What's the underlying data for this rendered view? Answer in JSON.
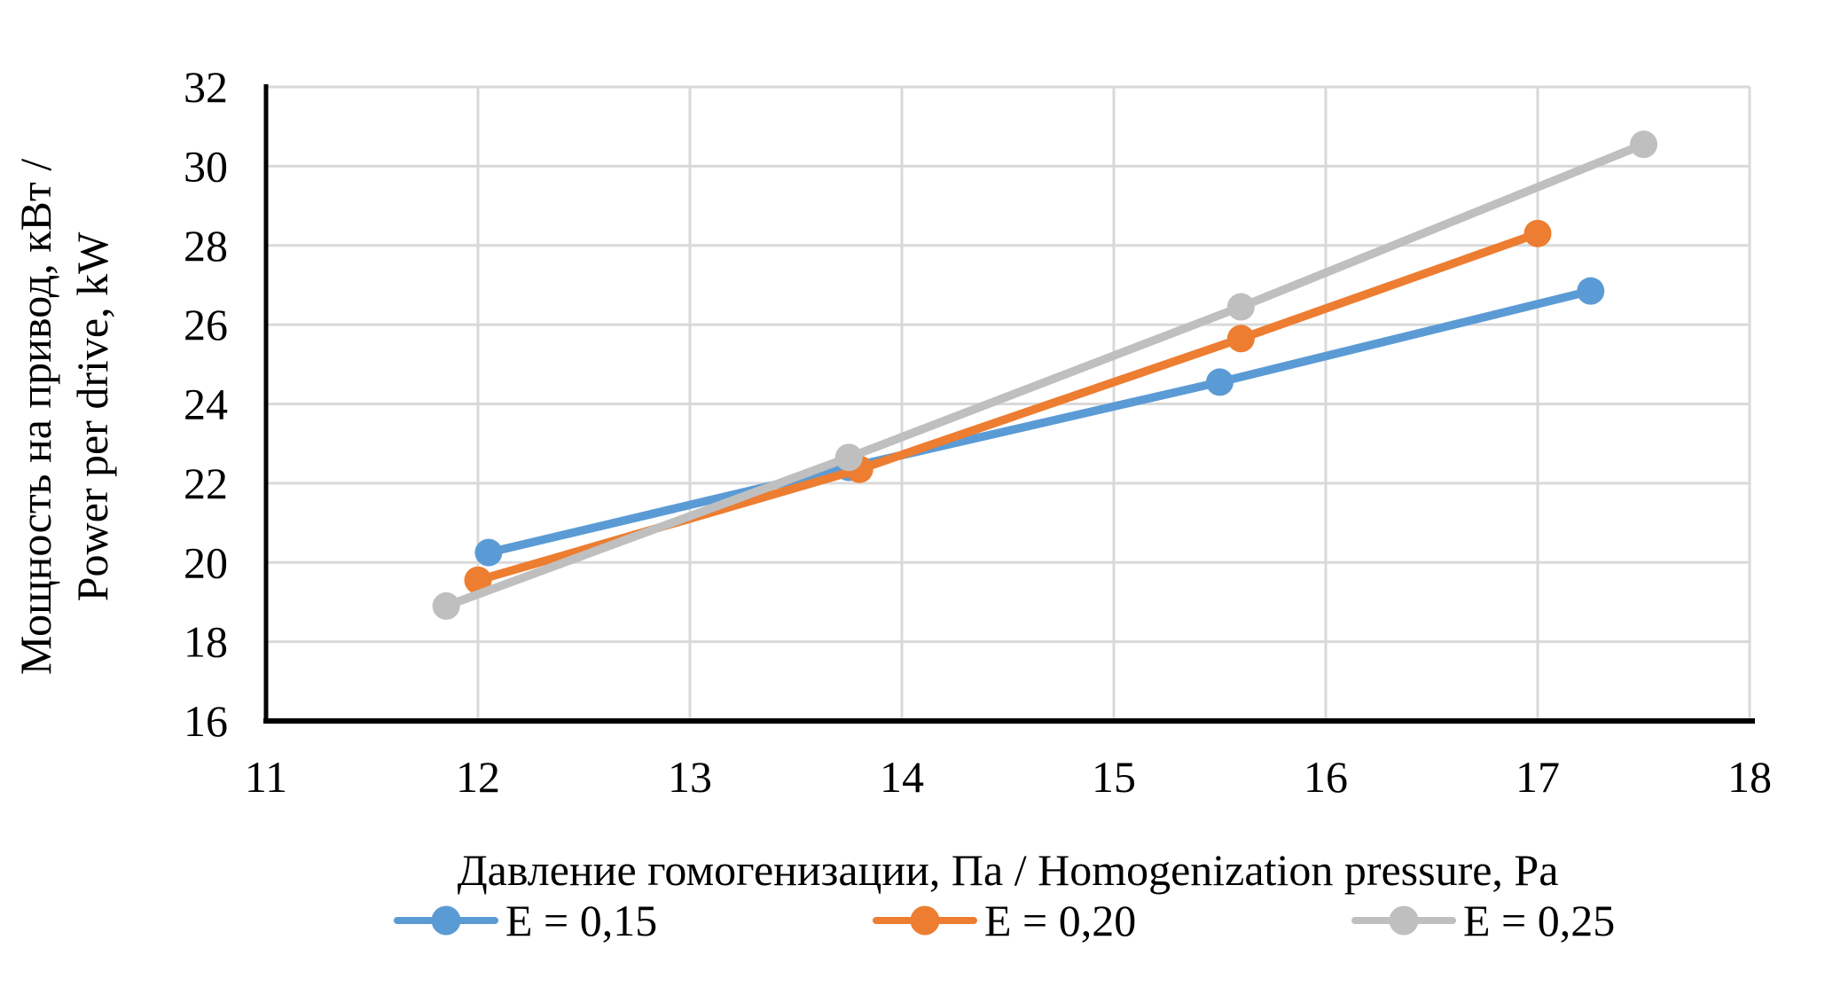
{
  "chart_data": {
    "type": "line",
    "title": "",
    "xlabel": "Давление гомогенизации, Па / Homogenization pressure, Pa",
    "ylabel_lines": [
      "Мощность на привод, кВт /",
      "Power per drive, kW"
    ],
    "xlim": [
      11,
      18
    ],
    "ylim": [
      16,
      32
    ],
    "x_ticks": [
      11,
      12,
      13,
      14,
      15,
      16,
      17,
      18
    ],
    "y_ticks": [
      16,
      18,
      20,
      22,
      24,
      26,
      28,
      30,
      32
    ],
    "grid": true,
    "legend_position": "bottom",
    "colors": {
      "gridline": "#D9D9D9",
      "axis": "#000000",
      "background": "#FFFFFF"
    },
    "series": [
      {
        "name": "E = 0,15",
        "color": "#5B9BD5",
        "points": [
          [
            12.05,
            20.25
          ],
          [
            13.75,
            22.4
          ],
          [
            15.5,
            24.55
          ],
          [
            17.25,
            26.85
          ]
        ]
      },
      {
        "name": "E = 0,20",
        "color": "#ED7D31",
        "points": [
          [
            12.0,
            19.55
          ],
          [
            13.8,
            22.35
          ],
          [
            15.6,
            25.65
          ],
          [
            17.0,
            28.3
          ]
        ]
      },
      {
        "name": "E = 0,25",
        "color": "#BFBFBF",
        "points": [
          [
            11.85,
            18.9
          ],
          [
            13.75,
            22.65
          ],
          [
            15.6,
            26.45
          ],
          [
            17.5,
            30.55
          ]
        ]
      }
    ]
  },
  "figure": {
    "description_label": ""
  }
}
